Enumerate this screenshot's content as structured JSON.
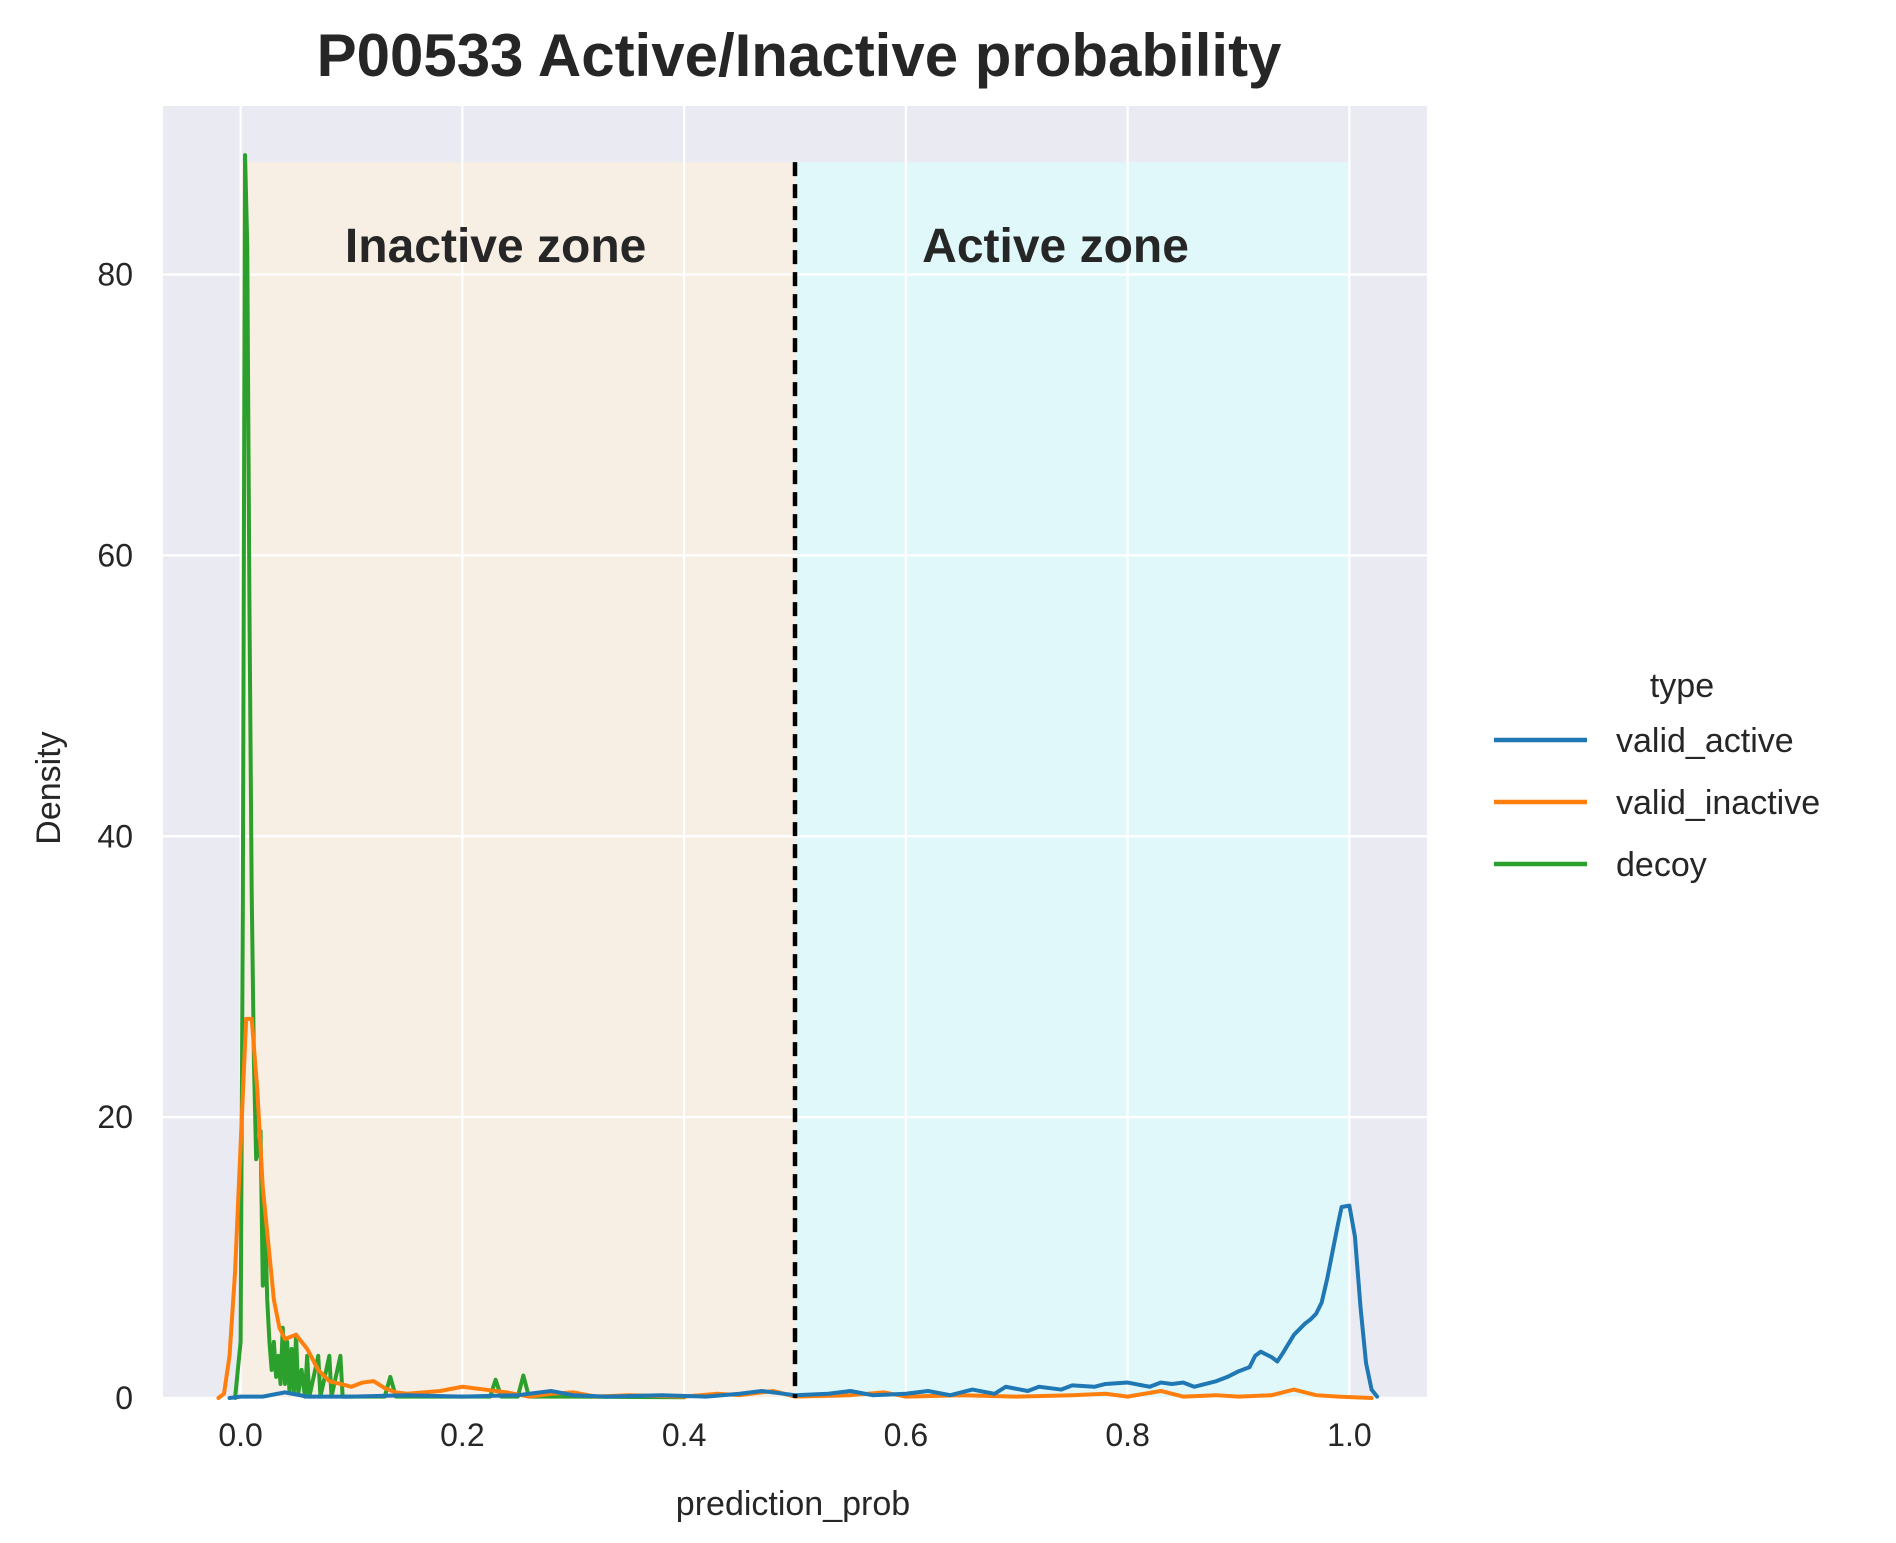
{
  "chart_data": {
    "type": "line",
    "title": "P00533  Active/Inactive probability",
    "xlabel": "prediction_prob",
    "ylabel": "Density",
    "xlim": [
      -0.07,
      1.07
    ],
    "ylim": [
      0,
      92
    ],
    "x_ticks": [
      "0.0",
      "0.2",
      "0.4",
      "0.6",
      "0.8",
      "1.0"
    ],
    "y_ticks": [
      "0",
      "20",
      "40",
      "60",
      "80"
    ],
    "grid": true,
    "legend": {
      "title": "type",
      "placement": "right"
    },
    "zones": [
      {
        "label": "Inactive zone",
        "x_start": 0.0,
        "x_end": 0.5,
        "color": "#f8efe4"
      },
      {
        "label": "Active zone",
        "x_start": 0.5,
        "x_end": 1.0,
        "color": "#e0f8fa"
      }
    ],
    "threshold": 0.5,
    "colors": {
      "background": "#eaeaf2",
      "grid": "#ffffff"
    },
    "series": [
      {
        "name": "valid_active",
        "color": "#1f77b4",
        "points": [
          [
            -0.01,
            0
          ],
          [
            0.0,
            0.1
          ],
          [
            0.02,
            0.1
          ],
          [
            0.04,
            0.4
          ],
          [
            0.06,
            0.1
          ],
          [
            0.1,
            0.1
          ],
          [
            0.15,
            0.2
          ],
          [
            0.2,
            0.1
          ],
          [
            0.25,
            0.2
          ],
          [
            0.28,
            0.5
          ],
          [
            0.3,
            0.2
          ],
          [
            0.33,
            0.1
          ],
          [
            0.38,
            0.2
          ],
          [
            0.42,
            0.1
          ],
          [
            0.45,
            0.3
          ],
          [
            0.47,
            0.5
          ],
          [
            0.5,
            0.2
          ],
          [
            0.53,
            0.3
          ],
          [
            0.55,
            0.5
          ],
          [
            0.57,
            0.2
          ],
          [
            0.6,
            0.3
          ],
          [
            0.62,
            0.5
          ],
          [
            0.64,
            0.2
          ],
          [
            0.66,
            0.6
          ],
          [
            0.68,
            0.3
          ],
          [
            0.69,
            0.8
          ],
          [
            0.71,
            0.5
          ],
          [
            0.72,
            0.8
          ],
          [
            0.74,
            0.6
          ],
          [
            0.75,
            0.9
          ],
          [
            0.77,
            0.8
          ],
          [
            0.78,
            1.0
          ],
          [
            0.8,
            1.1
          ],
          [
            0.82,
            0.8
          ],
          [
            0.83,
            1.1
          ],
          [
            0.84,
            1.0
          ],
          [
            0.85,
            1.1
          ],
          [
            0.86,
            0.8
          ],
          [
            0.88,
            1.2
          ],
          [
            0.89,
            1.5
          ],
          [
            0.9,
            1.9
          ],
          [
            0.91,
            2.2
          ],
          [
            0.915,
            3.0
          ],
          [
            0.92,
            3.3
          ],
          [
            0.93,
            2.9
          ],
          [
            0.935,
            2.6
          ],
          [
            0.94,
            3.2
          ],
          [
            0.95,
            4.5
          ],
          [
            0.96,
            5.3
          ],
          [
            0.965,
            5.6
          ],
          [
            0.97,
            6.0
          ],
          [
            0.975,
            6.8
          ],
          [
            0.98,
            8.5
          ],
          [
            0.985,
            10.5
          ],
          [
            0.99,
            12.5
          ],
          [
            0.993,
            13.6
          ],
          [
            1.0,
            13.7
          ],
          [
            1.005,
            11.5
          ],
          [
            1.01,
            6.5
          ],
          [
            1.015,
            2.5
          ],
          [
            1.02,
            0.6
          ],
          [
            1.025,
            0.1
          ]
        ]
      },
      {
        "name": "valid_inactive",
        "color": "#ff7f0e",
        "points": [
          [
            -0.02,
            0
          ],
          [
            -0.015,
            0.3
          ],
          [
            -0.01,
            3
          ],
          [
            -0.005,
            9
          ],
          [
            0.0,
            18
          ],
          [
            0.005,
            27
          ],
          [
            0.01,
            27
          ],
          [
            0.015,
            22
          ],
          [
            0.02,
            15
          ],
          [
            0.025,
            11
          ],
          [
            0.03,
            7
          ],
          [
            0.035,
            5
          ],
          [
            0.04,
            4.2
          ],
          [
            0.05,
            4.5
          ],
          [
            0.06,
            3.5
          ],
          [
            0.07,
            2
          ],
          [
            0.08,
            1.2
          ],
          [
            0.09,
            1
          ],
          [
            0.1,
            0.8
          ],
          [
            0.11,
            1.1
          ],
          [
            0.12,
            1.2
          ],
          [
            0.13,
            0.7
          ],
          [
            0.14,
            0.4
          ],
          [
            0.15,
            0.3
          ],
          [
            0.18,
            0.5
          ],
          [
            0.2,
            0.8
          ],
          [
            0.22,
            0.6
          ],
          [
            0.24,
            0.4
          ],
          [
            0.26,
            0.1
          ],
          [
            0.28,
            0.3
          ],
          [
            0.3,
            0.4
          ],
          [
            0.32,
            0.1
          ],
          [
            0.35,
            0.2
          ],
          [
            0.4,
            0.1
          ],
          [
            0.43,
            0.3
          ],
          [
            0.45,
            0.2
          ],
          [
            0.48,
            0.5
          ],
          [
            0.5,
            0.1
          ],
          [
            0.55,
            0.2
          ],
          [
            0.58,
            0.4
          ],
          [
            0.6,
            0.1
          ],
          [
            0.65,
            0.2
          ],
          [
            0.7,
            0.1
          ],
          [
            0.75,
            0.2
          ],
          [
            0.78,
            0.3
          ],
          [
            0.8,
            0.1
          ],
          [
            0.83,
            0.5
          ],
          [
            0.85,
            0.1
          ],
          [
            0.88,
            0.2
          ],
          [
            0.9,
            0.1
          ],
          [
            0.93,
            0.2
          ],
          [
            0.95,
            0.6
          ],
          [
            0.97,
            0.2
          ],
          [
            0.99,
            0.1
          ],
          [
            1.02,
            0
          ]
        ]
      },
      {
        "name": "decoy",
        "color": "#2ca02c",
        "points": [
          [
            -0.005,
            0
          ],
          [
            0.0,
            4
          ],
          [
            0.002,
            35
          ],
          [
            0.004,
            88.5
          ],
          [
            0.006,
            82
          ],
          [
            0.008,
            56
          ],
          [
            0.01,
            36
          ],
          [
            0.012,
            24
          ],
          [
            0.014,
            17
          ],
          [
            0.016,
            17.5
          ],
          [
            0.018,
            19
          ],
          [
            0.02,
            8
          ],
          [
            0.022,
            13
          ],
          [
            0.024,
            7
          ],
          [
            0.026,
            4
          ],
          [
            0.028,
            2
          ],
          [
            0.03,
            4
          ],
          [
            0.032,
            1.5
          ],
          [
            0.034,
            3
          ],
          [
            0.036,
            1
          ],
          [
            0.038,
            5
          ],
          [
            0.04,
            1
          ],
          [
            0.042,
            4
          ],
          [
            0.044,
            0.5
          ],
          [
            0.046,
            3.5
          ],
          [
            0.048,
            0.3
          ],
          [
            0.05,
            4.5
          ],
          [
            0.052,
            0.3
          ],
          [
            0.055,
            2
          ],
          [
            0.058,
            0.1
          ],
          [
            0.06,
            3
          ],
          [
            0.062,
            0.1
          ],
          [
            0.07,
            3
          ],
          [
            0.072,
            0.1
          ],
          [
            0.08,
            3
          ],
          [
            0.082,
            0.1
          ],
          [
            0.09,
            3
          ],
          [
            0.092,
            0.1
          ],
          [
            0.13,
            0.1
          ],
          [
            0.135,
            1.5
          ],
          [
            0.14,
            0.1
          ],
          [
            0.225,
            0.1
          ],
          [
            0.23,
            1.3
          ],
          [
            0.235,
            0.1
          ],
          [
            0.25,
            0.1
          ],
          [
            0.255,
            1.6
          ],
          [
            0.26,
            0.1
          ],
          [
            0.3,
            0.1
          ],
          [
            0.4,
            0.05
          ]
        ]
      }
    ]
  }
}
